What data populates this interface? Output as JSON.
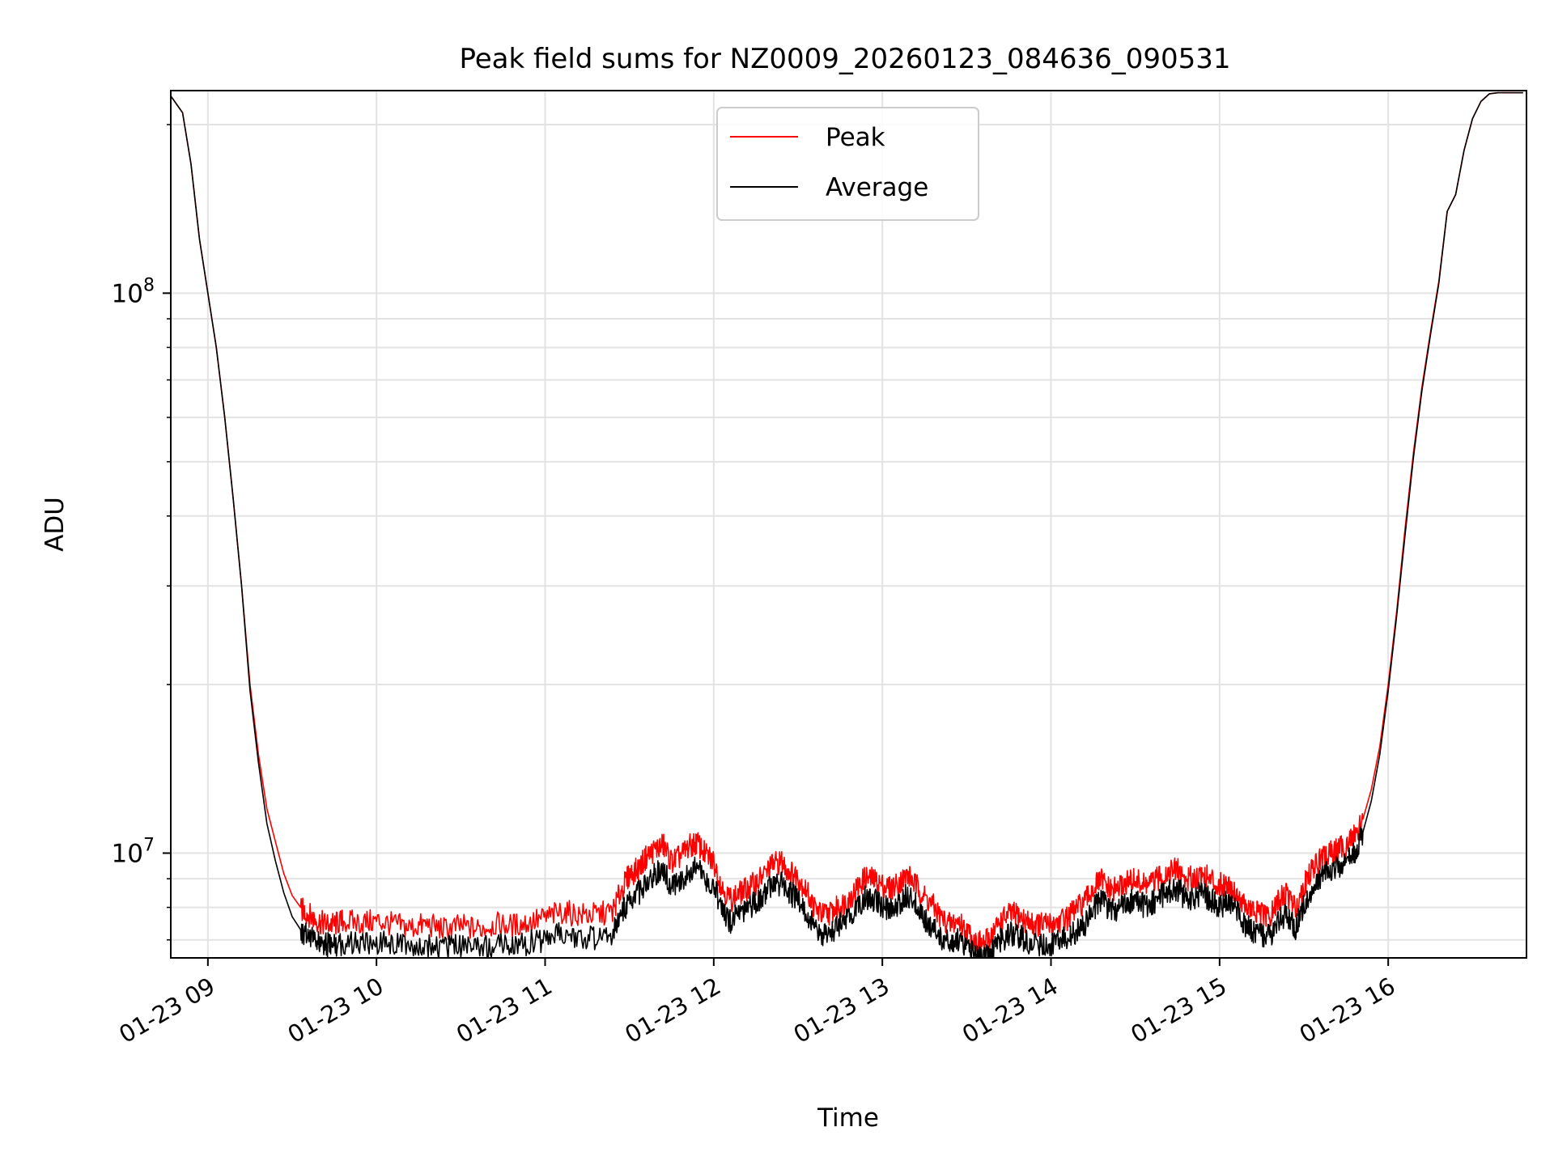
{
  "chart_data": {
    "type": "line",
    "title": "Peak field sums for NZ0009_20260123_084636_090531",
    "xlabel": "Time",
    "ylabel": "ADU",
    "x_unit": "hour of day (2026-01-23)",
    "xlim": [
      8.78,
      16.82
    ],
    "ylim": [
      6500000,
      230000000
    ],
    "y_scale": "log",
    "grid": true,
    "legend": "upper center",
    "x_ticks": [
      {
        "value": 9,
        "label": "01-23 09"
      },
      {
        "value": 10,
        "label": "01-23 10"
      },
      {
        "value": 11,
        "label": "01-23 11"
      },
      {
        "value": 12,
        "label": "01-23 12"
      },
      {
        "value": 13,
        "label": "01-23 13"
      },
      {
        "value": 14,
        "label": "01-23 14"
      },
      {
        "value": 15,
        "label": "01-23 15"
      },
      {
        "value": 16,
        "label": "01-23 16"
      }
    ],
    "y_ticks": [
      {
        "value": 10000000,
        "base": "10",
        "exp": "7"
      },
      {
        "value": 100000000,
        "base": "10",
        "exp": "8"
      }
    ],
    "series": [
      {
        "name": "Peak",
        "color": "#ff0000",
        "x": [
          8.78,
          8.85,
          8.9,
          8.95,
          9.0,
          9.05,
          9.1,
          9.15,
          9.2,
          9.25,
          9.3,
          9.35,
          9.4,
          9.45,
          9.5,
          9.55,
          9.6,
          9.65,
          9.7,
          9.75,
          9.8,
          9.9,
          10.0,
          10.1,
          10.2,
          10.3,
          10.4,
          10.5,
          10.6,
          10.7,
          10.8,
          10.9,
          11.0,
          11.1,
          11.2,
          11.3,
          11.4,
          11.45,
          11.5,
          11.55,
          11.6,
          11.65,
          11.7,
          11.75,
          11.8,
          11.85,
          11.9,
          11.95,
          12.0,
          12.05,
          12.1,
          12.15,
          12.2,
          12.25,
          12.3,
          12.35,
          12.4,
          12.45,
          12.5,
          12.55,
          12.6,
          12.65,
          12.7,
          12.75,
          12.8,
          12.85,
          12.9,
          12.95,
          13.0,
          13.05,
          13.1,
          13.15,
          13.2,
          13.25,
          13.3,
          13.35,
          13.4,
          13.45,
          13.5,
          13.55,
          13.6,
          13.65,
          13.7,
          13.75,
          13.8,
          13.85,
          13.9,
          13.95,
          14.0,
          14.05,
          14.1,
          14.15,
          14.2,
          14.25,
          14.3,
          14.35,
          14.4,
          14.45,
          14.5,
          14.55,
          14.6,
          14.65,
          14.7,
          14.75,
          14.8,
          14.85,
          14.9,
          14.95,
          15.0,
          15.05,
          15.1,
          15.15,
          15.2,
          15.25,
          15.3,
          15.35,
          15.4,
          15.45,
          15.5,
          15.55,
          15.6,
          15.65,
          15.7,
          15.75,
          15.8,
          15.85,
          15.9,
          15.95,
          16.0,
          16.05,
          16.1,
          16.15,
          16.2,
          16.25,
          16.3,
          16.35,
          16.4,
          16.45,
          16.5,
          16.55,
          16.6,
          16.65,
          16.8
        ],
        "y": [
          225000000,
          210000000,
          170000000,
          125000000,
          100000000,
          80000000,
          60000000,
          43000000,
          30000000,
          20000000,
          15000000,
          12000000,
          10500000,
          9200000,
          8400000,
          8000000,
          7800000,
          7600000,
          7500000,
          7500000,
          7600000,
          7550000,
          7600000,
          7500000,
          7400000,
          7500000,
          7350000,
          7450000,
          7350000,
          7500000,
          7450000,
          7550000,
          7700000,
          7900000,
          7800000,
          7800000,
          7900000,
          8600000,
          9200000,
          9400000,
          9900000,
          10200000,
          10400000,
          9700000,
          9900000,
          10300000,
          10500000,
          10000000,
          9700000,
          8700000,
          8300000,
          8500000,
          8700000,
          8900000,
          9200000,
          9600000,
          9700000,
          9300000,
          9100000,
          8600000,
          8000000,
          7800000,
          7900000,
          8100000,
          8300000,
          8700000,
          9100000,
          9000000,
          8800000,
          8700000,
          8900000,
          9200000,
          8800000,
          8400000,
          8100000,
          7700000,
          7500000,
          7600000,
          7300000,
          7000000,
          6900000,
          7200000,
          7600000,
          7800000,
          7800000,
          7600000,
          7500000,
          7500000,
          7500000,
          7600000,
          7700000,
          8000000,
          8200000,
          8700000,
          9000000,
          8600000,
          8700000,
          8900000,
          9000000,
          8800000,
          8900000,
          9100000,
          9300000,
          9400000,
          9000000,
          9100000,
          9200000,
          9000000,
          8800000,
          8900000,
          8500000,
          8100000,
          7900000,
          7800000,
          7700000,
          8300000,
          8500000,
          8000000,
          8800000,
          9400000,
          9800000,
          10000000,
          10200000,
          10400000,
          10800000,
          11500000,
          13000000,
          15500000,
          20000000,
          27000000,
          38000000,
          52000000,
          68000000,
          85000000,
          105000000,
          140000000,
          150000000,
          180000000,
          205000000,
          220000000,
          227000000,
          228000000,
          228000000
        ]
      },
      {
        "name": "Average",
        "color": "#000000",
        "x": [
          8.78,
          8.85,
          8.9,
          8.95,
          9.0,
          9.05,
          9.1,
          9.15,
          9.2,
          9.25,
          9.3,
          9.35,
          9.4,
          9.45,
          9.5,
          9.55,
          9.6,
          9.65,
          9.7,
          9.75,
          9.8,
          9.9,
          10.0,
          10.1,
          10.2,
          10.3,
          10.4,
          10.5,
          10.6,
          10.7,
          10.8,
          10.9,
          11.0,
          11.1,
          11.2,
          11.3,
          11.4,
          11.45,
          11.5,
          11.55,
          11.6,
          11.65,
          11.7,
          11.75,
          11.8,
          11.85,
          11.9,
          11.95,
          12.0,
          12.05,
          12.1,
          12.15,
          12.2,
          12.25,
          12.3,
          12.35,
          12.4,
          12.45,
          12.5,
          12.55,
          12.6,
          12.65,
          12.7,
          12.75,
          12.8,
          12.85,
          12.9,
          12.95,
          13.0,
          13.05,
          13.1,
          13.15,
          13.2,
          13.25,
          13.3,
          13.35,
          13.4,
          13.45,
          13.5,
          13.55,
          13.6,
          13.65,
          13.7,
          13.75,
          13.8,
          13.85,
          13.9,
          13.95,
          14.0,
          14.05,
          14.1,
          14.15,
          14.2,
          14.25,
          14.3,
          14.35,
          14.4,
          14.45,
          14.5,
          14.55,
          14.6,
          14.65,
          14.7,
          14.75,
          14.8,
          14.85,
          14.9,
          14.95,
          15.0,
          15.05,
          15.1,
          15.15,
          15.2,
          15.25,
          15.3,
          15.35,
          15.4,
          15.45,
          15.5,
          15.55,
          15.6,
          15.65,
          15.7,
          15.75,
          15.8,
          15.85,
          15.9,
          15.95,
          16.0,
          16.05,
          16.1,
          16.15,
          16.2,
          16.25,
          16.3,
          16.35,
          16.4,
          16.45,
          16.5,
          16.55,
          16.6,
          16.65,
          16.8
        ],
        "y": [
          225000000,
          210000000,
          170000000,
          125000000,
          100000000,
          80000000,
          60000000,
          43000000,
          30000000,
          19500000,
          14500000,
          11300000,
          9700000,
          8500000,
          7700000,
          7300000,
          7100000,
          7000000,
          6900000,
          6900000,
          6950000,
          6950000,
          6950000,
          6900000,
          6850000,
          6900000,
          6800000,
          6850000,
          6800000,
          6900000,
          6850000,
          6950000,
          7050000,
          7200000,
          7150000,
          7100000,
          7200000,
          7800000,
          8300000,
          8500000,
          8900000,
          9200000,
          9400000,
          8700000,
          8900000,
          9300000,
          9500000,
          9000000,
          8800000,
          7900000,
          7600000,
          7800000,
          8000000,
          8200000,
          8500000,
          8800000,
          8900000,
          8500000,
          8400000,
          7900000,
          7400000,
          7200000,
          7300000,
          7500000,
          7700000,
          8000000,
          8400000,
          8300000,
          8100000,
          8000000,
          8200000,
          8500000,
          8100000,
          7700000,
          7400000,
          7100000,
          7000000,
          7050000,
          6800000,
          6600000,
          6500000,
          6700000,
          7000000,
          7200000,
          7200000,
          7000000,
          6900000,
          6900000,
          6900000,
          7000000,
          7100000,
          7300000,
          7500000,
          8000000,
          8300000,
          7900000,
          8000000,
          8200000,
          8300000,
          8100000,
          8200000,
          8400000,
          8600000,
          8700000,
          8300000,
          8400000,
          8500000,
          8300000,
          8100000,
          8200000,
          7900000,
          7500000,
          7300000,
          7200000,
          7100000,
          7600000,
          7800000,
          7400000,
          8100000,
          8700000,
          9100000,
          9300000,
          9500000,
          9700000,
          10100000,
          10900000,
          12400000,
          15000000,
          19500000,
          26500000,
          37000000,
          51000000,
          67000000,
          84000000,
          104000000,
          140000000,
          150000000,
          180000000,
          205000000,
          220000000,
          227000000,
          228000000,
          228000000
        ]
      }
    ]
  }
}
